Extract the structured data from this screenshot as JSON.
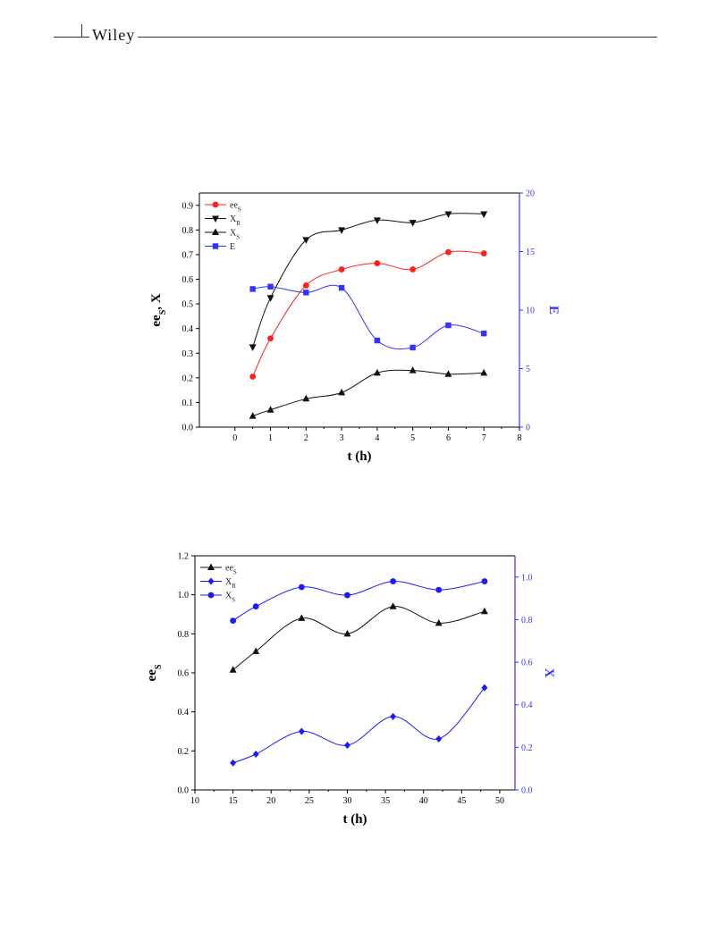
{
  "header": {
    "publisher": "Wiley"
  },
  "chart_data": [
    {
      "type": "scatter",
      "xlabel": "t (h)",
      "ylabel_main": "ee",
      "ylabel_sub": "S",
      "ylabel_tail": ", X",
      "y2label": "E",
      "xlim": [
        -1,
        8
      ],
      "xticks": [
        "0",
        "1",
        "2",
        "3",
        "4",
        "5",
        "6",
        "7",
        "8"
      ],
      "ylim": [
        0,
        0.95
      ],
      "yticks": [
        "0.0",
        "0.1",
        "0.2",
        "0.3",
        "0.4",
        "0.5",
        "0.6",
        "0.7",
        "0.8",
        "0.9"
      ],
      "y2lim": [
        0,
        20
      ],
      "y2ticks": [
        "0",
        "5",
        "10",
        "15",
        "20"
      ],
      "y2color": "#3333ff",
      "grid": false,
      "legend_position": "top-left",
      "series": [
        {
          "label_main": "ee",
          "label_sub": "S",
          "axis": "left",
          "color": "#ff2020",
          "marker": "circle",
          "x": [
            0.5,
            1,
            2,
            3,
            4,
            5,
            6,
            7
          ],
          "y": [
            0.205,
            0.36,
            0.575,
            0.64,
            0.665,
            0.64,
            0.71,
            0.705
          ]
        },
        {
          "label_main": "X",
          "label_sub": "R",
          "axis": "left",
          "color": "#111111",
          "marker": "triangle-down",
          "x": [
            0.5,
            1,
            2,
            3,
            4,
            5,
            6,
            7
          ],
          "y": [
            0.325,
            0.525,
            0.76,
            0.8,
            0.84,
            0.83,
            0.865,
            0.865
          ]
        },
        {
          "label_main": "X",
          "label_sub": "S",
          "axis": "left",
          "color": "#111111",
          "marker": "triangle-up",
          "x": [
            0.5,
            1,
            2,
            3,
            4,
            5,
            6,
            7
          ],
          "y": [
            0.045,
            0.07,
            0.115,
            0.14,
            0.22,
            0.23,
            0.215,
            0.22
          ]
        },
        {
          "label_main": "E",
          "label_sub": "",
          "axis": "right",
          "color": "#3333ff",
          "marker": "square",
          "x": [
            0.5,
            1,
            2,
            3,
            4,
            5,
            6,
            7
          ],
          "y": [
            11.8,
            12.0,
            11.5,
            11.9,
            7.4,
            6.8,
            8.7,
            8.0
          ]
        }
      ]
    },
    {
      "type": "scatter",
      "xlabel": "t (h)",
      "ylabel_main": "ee",
      "ylabel_sub": "S",
      "ylabel_tail": "",
      "y2label": "X",
      "xlim": [
        10,
        52
      ],
      "xticks": [
        "10",
        "15",
        "20",
        "25",
        "30",
        "35",
        "40",
        "45",
        "50"
      ],
      "ylim": [
        0,
        1.2
      ],
      "yticks": [
        "0.0",
        "0.2",
        "0.4",
        "0.6",
        "0.8",
        "1.0",
        "1.2"
      ],
      "y2lim": [
        0,
        1.1
      ],
      "y2ticks": [
        "0.0",
        "0.2",
        "0.4",
        "0.6",
        "0.8",
        "1.0"
      ],
      "y2color": "#3333ff",
      "grid": false,
      "legend_position": "top-left",
      "series": [
        {
          "label_main": "ee",
          "label_sub": "S",
          "axis": "left",
          "color": "#111111",
          "marker": "triangle-up",
          "x": [
            15,
            18,
            24,
            30,
            36,
            42,
            48
          ],
          "y": [
            0.615,
            0.71,
            0.88,
            0.8,
            0.94,
            0.855,
            0.915
          ]
        },
        {
          "label_main": "X",
          "label_sub": "R",
          "axis": "right",
          "color": "#1a1aff",
          "marker": "diamond",
          "x": [
            15,
            18,
            24,
            30,
            36,
            42,
            48
          ],
          "y": [
            0.127,
            0.168,
            0.275,
            0.21,
            0.345,
            0.24,
            0.48
          ]
        },
        {
          "label_main": "X",
          "label_sub": "S",
          "axis": "right",
          "color": "#1a1aff",
          "marker": "circle",
          "x": [
            15,
            18,
            24,
            30,
            36,
            42,
            48
          ],
          "y": [
            0.795,
            0.862,
            0.953,
            0.915,
            0.98,
            0.94,
            0.98
          ]
        }
      ]
    }
  ]
}
